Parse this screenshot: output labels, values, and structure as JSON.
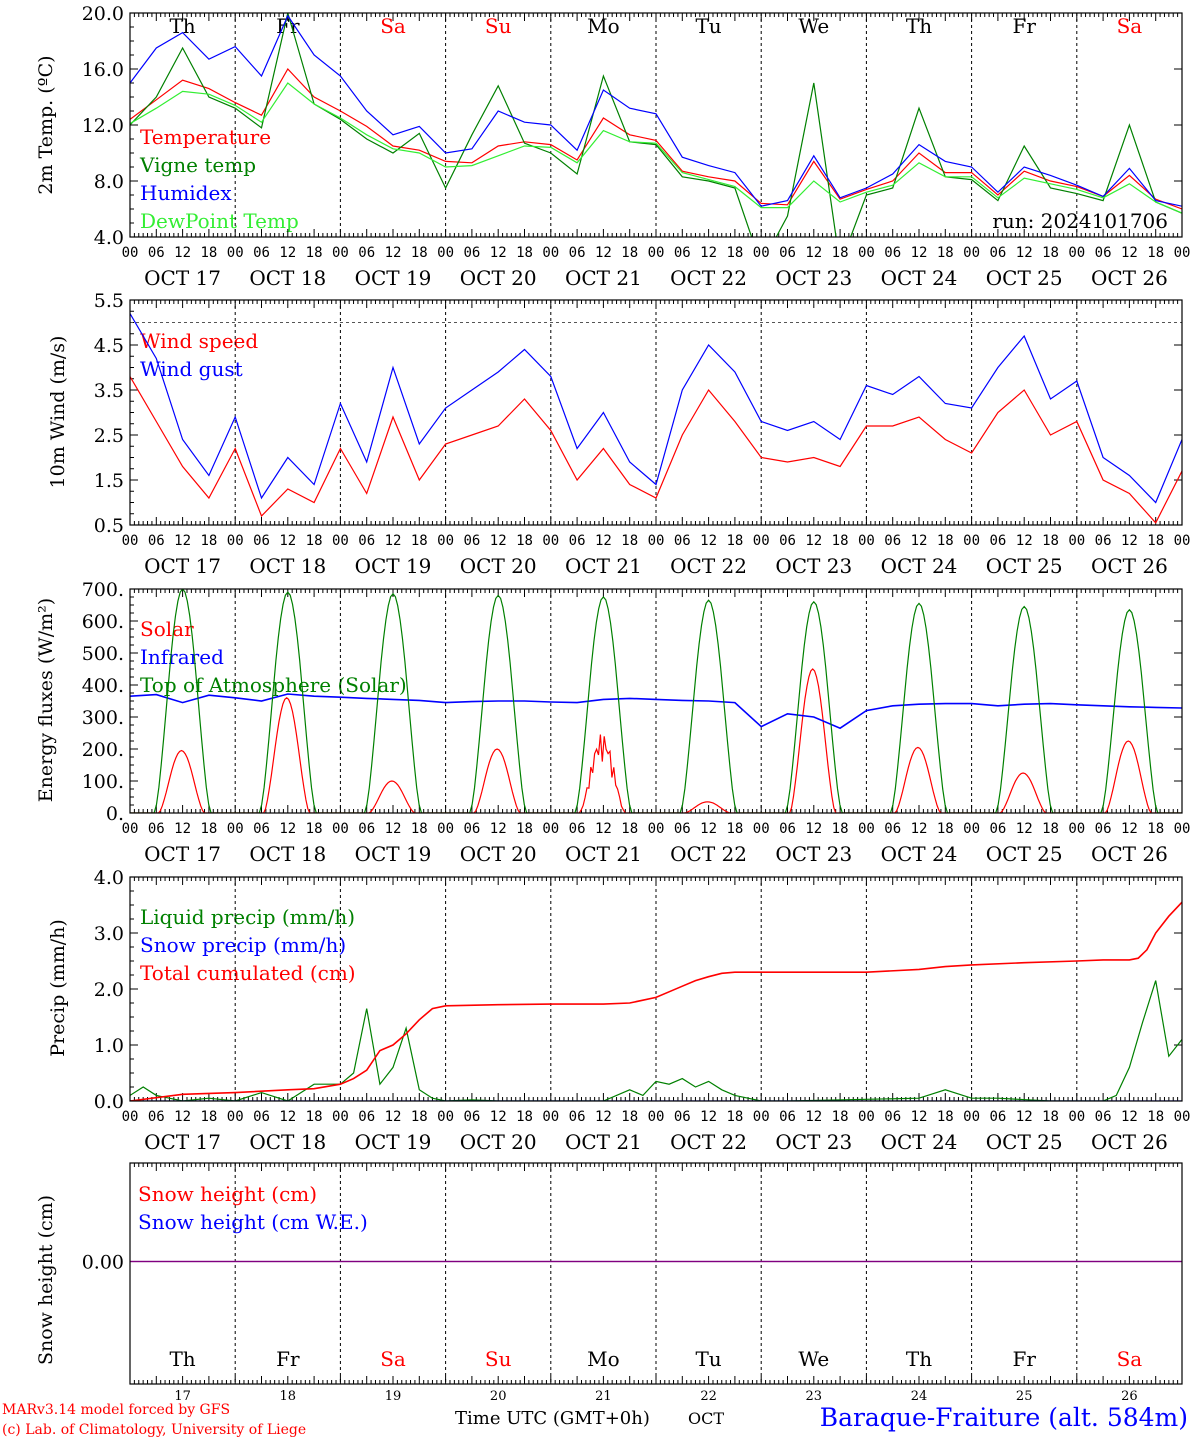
{
  "run_label": "run: 2024101706",
  "footer": {
    "model": "MARv3.14 model forced by GFS",
    "credit": "(c) Lab. of Climatology, University of Liege",
    "xlabel": "Time UTC (GMT+0h)",
    "month": "OCT",
    "station": "Baraque-Fraiture (alt. 584m)"
  },
  "days": [
    {
      "wd": "Th",
      "date": "OCT 17",
      "num": "17",
      "weekend": false
    },
    {
      "wd": "Fr",
      "date": "OCT 18",
      "num": "18",
      "weekend": false
    },
    {
      "wd": "Sa",
      "date": "OCT 19",
      "num": "19",
      "weekend": true
    },
    {
      "wd": "Su",
      "date": "OCT 20",
      "num": "20",
      "weekend": true
    },
    {
      "wd": "Mo",
      "date": "OCT 21",
      "num": "21",
      "weekend": false
    },
    {
      "wd": "Tu",
      "date": "OCT 22",
      "num": "22",
      "weekend": false
    },
    {
      "wd": "We",
      "date": "OCT 23",
      "num": "23",
      "weekend": false
    },
    {
      "wd": "Th",
      "date": "OCT 24",
      "num": "24",
      "weekend": false
    },
    {
      "wd": "Fr",
      "date": "OCT 25",
      "num": "25",
      "weekend": false
    },
    {
      "wd": "Sa",
      "date": "OCT 26",
      "num": "26",
      "weekend": true
    }
  ],
  "hour_ticks": [
    "00",
    "06",
    "12",
    "18"
  ],
  "colors": {
    "red": "#ff0000",
    "green": "#008000",
    "blue": "#0000ff",
    "lightgreen": "#33ee33",
    "purple": "#800080",
    "weekend": "#ff0000"
  },
  "chart_data": [
    {
      "type": "line",
      "id": "temp",
      "ylabel": "2m Temp. (ºC)",
      "ylim": [
        4,
        20
      ],
      "yticks": [
        "4.0",
        "8.0",
        "12.0",
        "16.0",
        "20.0"
      ],
      "x_unit": "hours since Oct 17 00 UTC",
      "series": [
        {
          "name": "Temperature",
          "color": "#ff0000",
          "x": [
            0,
            6,
            12,
            18,
            24,
            30,
            36,
            42,
            48,
            54,
            60,
            66,
            72,
            78,
            84,
            90,
            96,
            102,
            108,
            114,
            120,
            126,
            132,
            138,
            144,
            150,
            156,
            162,
            168,
            174,
            180,
            186,
            192,
            198,
            204,
            210,
            216,
            222,
            228,
            234,
            240
          ],
          "y": [
            12.4,
            13.8,
            15.2,
            14.6,
            13.6,
            12.7,
            16.0,
            14.0,
            13.0,
            11.9,
            10.5,
            10.2,
            9.4,
            9.3,
            10.5,
            10.8,
            10.6,
            9.5,
            12.5,
            11.3,
            10.9,
            8.7,
            8.3,
            8.0,
            6.4,
            6.3,
            9.4,
            6.7,
            7.4,
            8.0,
            10.0,
            8.6,
            8.6,
            7.0,
            8.7,
            8.0,
            7.6,
            6.9,
            8.4,
            6.7,
            6.0
          ]
        },
        {
          "name": "Vigne temp",
          "color": "#008000",
          "x": [
            0,
            6,
            12,
            18,
            24,
            30,
            36,
            42,
            48,
            54,
            60,
            66,
            72,
            78,
            84,
            90,
            96,
            102,
            108,
            114,
            120,
            126,
            132,
            138,
            144,
            150,
            156,
            162,
            168,
            174,
            180,
            186,
            192,
            198,
            204,
            210,
            216,
            222,
            228,
            234,
            240
          ],
          "y": [
            12.0,
            14.0,
            17.5,
            14.0,
            13.2,
            11.8,
            20.0,
            13.5,
            12.4,
            11.0,
            10.0,
            11.4,
            7.5,
            11.3,
            14.8,
            10.7,
            10.0,
            8.5,
            15.5,
            10.8,
            10.6,
            8.3,
            8.0,
            7.5,
            2.0,
            5.5,
            15.0,
            2.0,
            7.0,
            7.5,
            13.2,
            8.3,
            8.1,
            6.6,
            10.5,
            7.5,
            7.1,
            6.6,
            12.0,
            6.5,
            5.7
          ]
        },
        {
          "name": "Humidex",
          "color": "#0000ff",
          "x": [
            0,
            6,
            12,
            18,
            24,
            30,
            36,
            42,
            48,
            54,
            60,
            66,
            72,
            78,
            84,
            90,
            96,
            102,
            108,
            114,
            120,
            126,
            132,
            138,
            144,
            150,
            156,
            162,
            168,
            174,
            180,
            186,
            192,
            198,
            204,
            210,
            216,
            222,
            228,
            234,
            240
          ],
          "y": [
            15.0,
            17.5,
            18.6,
            16.7,
            17.6,
            15.5,
            19.8,
            17.0,
            15.5,
            13.0,
            11.3,
            11.9,
            10.0,
            10.3,
            13.0,
            12.2,
            12.0,
            10.2,
            14.5,
            13.2,
            12.8,
            9.7,
            9.1,
            8.6,
            6.2,
            6.6,
            9.8,
            6.8,
            7.5,
            8.5,
            10.6,
            9.4,
            9.0,
            7.2,
            9.0,
            8.4,
            7.7,
            6.9,
            8.9,
            6.6,
            6.2
          ]
        },
        {
          "name": "DewPoint Temp",
          "color": "#33ee33",
          "x": [
            0,
            6,
            12,
            18,
            24,
            30,
            36,
            42,
            48,
            54,
            60,
            66,
            72,
            78,
            84,
            90,
            96,
            102,
            108,
            114,
            120,
            126,
            132,
            138,
            144,
            150,
            156,
            162,
            168,
            174,
            180,
            186,
            192,
            198,
            204,
            210,
            216,
            222,
            228,
            234,
            240
          ],
          "y": [
            12.1,
            13.2,
            14.4,
            14.2,
            13.4,
            12.2,
            15.0,
            13.5,
            12.5,
            11.3,
            10.3,
            10.0,
            9.0,
            9.1,
            9.8,
            10.5,
            10.4,
            9.3,
            11.6,
            10.8,
            10.7,
            8.6,
            8.1,
            7.6,
            6.1,
            6.1,
            8.0,
            6.5,
            7.2,
            7.7,
            9.3,
            8.3,
            8.3,
            6.8,
            8.2,
            7.8,
            7.4,
            6.8,
            7.8,
            6.5,
            5.7
          ]
        }
      ]
    },
    {
      "type": "line",
      "id": "wind",
      "ylabel": "10m Wind (m/s)",
      "ylim": [
        0.5,
        5.5
      ],
      "yticks": [
        "0.5",
        "1.5",
        "2.5",
        "3.5",
        "4.5",
        "5.5"
      ],
      "reference_line": 5.0,
      "x_unit": "hours since Oct 17 00 UTC",
      "series": [
        {
          "name": "Wind speed",
          "color": "#ff0000",
          "x": [
            0,
            6,
            12,
            18,
            24,
            30,
            36,
            42,
            48,
            54,
            60,
            66,
            72,
            78,
            84,
            90,
            96,
            102,
            108,
            114,
            120,
            126,
            132,
            138,
            144,
            150,
            156,
            162,
            168,
            174,
            180,
            186,
            192,
            198,
            204,
            210,
            216,
            222,
            228,
            234,
            240
          ],
          "y": [
            3.8,
            2.8,
            1.8,
            1.1,
            2.2,
            0.7,
            1.3,
            1.0,
            2.2,
            1.2,
            2.9,
            1.5,
            2.3,
            2.5,
            2.7,
            3.3,
            2.6,
            1.5,
            2.2,
            1.4,
            1.1,
            2.5,
            3.5,
            2.8,
            2.0,
            1.9,
            2.0,
            1.8,
            2.7,
            2.7,
            2.9,
            2.4,
            2.1,
            3.0,
            3.5,
            2.5,
            2.8,
            1.5,
            1.2,
            0.55,
            1.7
          ]
        },
        {
          "name": "Wind gust",
          "color": "#0000ff",
          "x": [
            0,
            6,
            12,
            18,
            24,
            30,
            36,
            42,
            48,
            54,
            60,
            66,
            72,
            78,
            84,
            90,
            96,
            102,
            108,
            114,
            120,
            126,
            132,
            138,
            144,
            150,
            156,
            162,
            168,
            174,
            180,
            186,
            192,
            198,
            204,
            210,
            216,
            222,
            228,
            234,
            240
          ],
          "y": [
            5.2,
            4.2,
            2.4,
            1.6,
            2.9,
            1.1,
            2.0,
            1.4,
            3.2,
            1.9,
            4.0,
            2.3,
            3.1,
            3.5,
            3.9,
            4.4,
            3.8,
            2.2,
            3.0,
            1.9,
            1.4,
            3.5,
            4.5,
            3.9,
            2.8,
            2.6,
            2.8,
            2.4,
            3.6,
            3.4,
            3.8,
            3.2,
            3.1,
            4.0,
            4.7,
            3.3,
            3.7,
            2.0,
            1.6,
            1.0,
            2.4
          ]
        }
      ]
    },
    {
      "type": "line",
      "id": "energy",
      "ylabel": "Energy fluxes (W/m²)",
      "ylim": [
        0,
        700
      ],
      "yticks": [
        "0.",
        "100.",
        "200.",
        "300.",
        "400.",
        "500.",
        "600.",
        "700."
      ],
      "x_unit": "hours since Oct 17 00 UTC",
      "series": [
        {
          "name": "Solar",
          "color": "#ff0000",
          "day_peaks": [
            195,
            360,
            100,
            200,
            250,
            35,
            450,
            205,
            125,
            225
          ]
        },
        {
          "name": "Infrared",
          "color": "#0000ff",
          "x": [
            0,
            6,
            12,
            18,
            24,
            30,
            36,
            42,
            48,
            54,
            60,
            66,
            72,
            78,
            84,
            90,
            96,
            102,
            108,
            114,
            120,
            126,
            132,
            138,
            144,
            150,
            156,
            162,
            168,
            174,
            180,
            186,
            192,
            198,
            204,
            210,
            216,
            222,
            228,
            234,
            240
          ],
          "y": [
            365,
            370,
            345,
            368,
            360,
            350,
            372,
            365,
            362,
            358,
            355,
            352,
            345,
            348,
            350,
            350,
            347,
            345,
            355,
            358,
            355,
            352,
            350,
            345,
            270,
            310,
            300,
            265,
            320,
            335,
            340,
            342,
            342,
            335,
            340,
            342,
            338,
            335,
            332,
            330,
            328
          ]
        },
        {
          "name": "Top of Atmosphere (Solar)",
          "color": "#008000",
          "day_peaks": [
            700,
            690,
            685,
            680,
            675,
            665,
            660,
            655,
            645,
            635
          ]
        }
      ]
    },
    {
      "type": "line",
      "id": "precip",
      "ylabel": "Precip (mm/h)",
      "ylim": [
        0,
        4
      ],
      "yticks": [
        "0.0",
        "1.0",
        "2.0",
        "3.0",
        "4.0"
      ],
      "x_unit": "hours since Oct 17 00 UTC",
      "series": [
        {
          "name": "Liquid precip (mm/h)",
          "color": "#008000",
          "x": [
            0,
            3,
            6,
            9,
            12,
            18,
            24,
            30,
            36,
            42,
            48,
            51,
            54,
            57,
            60,
            63,
            66,
            69,
            72,
            78,
            84,
            96,
            108,
            114,
            117,
            120,
            123,
            126,
            129,
            132,
            135,
            138,
            141,
            144,
            150,
            180,
            186,
            192,
            198,
            210,
            222,
            225,
            228,
            231,
            234,
            237,
            240
          ],
          "y": [
            0.1,
            0.25,
            0.1,
            0.05,
            0.0,
            0.05,
            0.0,
            0.15,
            0.0,
            0.3,
            0.3,
            0.5,
            1.65,
            0.3,
            0.6,
            1.3,
            0.2,
            0.05,
            0.0,
            0.02,
            0.0,
            0.0,
            0.0,
            0.2,
            0.1,
            0.35,
            0.3,
            0.4,
            0.25,
            0.35,
            0.2,
            0.1,
            0.05,
            0.0,
            0.0,
            0.05,
            0.2,
            0.05,
            0.05,
            0.0,
            0.0,
            0.1,
            0.6,
            1.4,
            2.15,
            0.8,
            1.1
          ]
        },
        {
          "name": "Snow precip (mm/h)",
          "color": "#0000ff",
          "x": [
            0,
            240
          ],
          "y": [
            0,
            0
          ]
        },
        {
          "name": "Total cumulated (cm)",
          "color": "#ff0000",
          "x": [
            0,
            12,
            24,
            36,
            42,
            48,
            51,
            54,
            57,
            60,
            63,
            66,
            69,
            72,
            84,
            96,
            108,
            114,
            117,
            120,
            123,
            126,
            129,
            132,
            135,
            138,
            141,
            144,
            168,
            180,
            186,
            192,
            204,
            216,
            222,
            228,
            230,
            232,
            234,
            237,
            240
          ],
          "y": [
            0.0,
            0.12,
            0.15,
            0.2,
            0.22,
            0.3,
            0.4,
            0.55,
            0.9,
            1.0,
            1.2,
            1.45,
            1.65,
            1.7,
            1.72,
            1.73,
            1.73,
            1.75,
            1.8,
            1.85,
            1.95,
            2.05,
            2.15,
            2.22,
            2.28,
            2.3,
            2.3,
            2.3,
            2.3,
            2.35,
            2.4,
            2.43,
            2.47,
            2.5,
            2.52,
            2.52,
            2.55,
            2.7,
            3.0,
            3.3,
            3.55
          ]
        }
      ]
    },
    {
      "type": "line",
      "id": "snow",
      "ylabel": "Snow height (cm)",
      "yticks": [
        "0.00"
      ],
      "x_unit": "hours since Oct 17 00 UTC",
      "series": [
        {
          "name": "Snow height (cm)",
          "color": "#ff0000",
          "x": [
            0,
            240
          ],
          "y": [
            0,
            0
          ]
        },
        {
          "name": "Snow height (cm W.E.)",
          "color": "#0000ff",
          "x": [
            0,
            240
          ],
          "y": [
            0,
            0
          ]
        }
      ]
    }
  ]
}
